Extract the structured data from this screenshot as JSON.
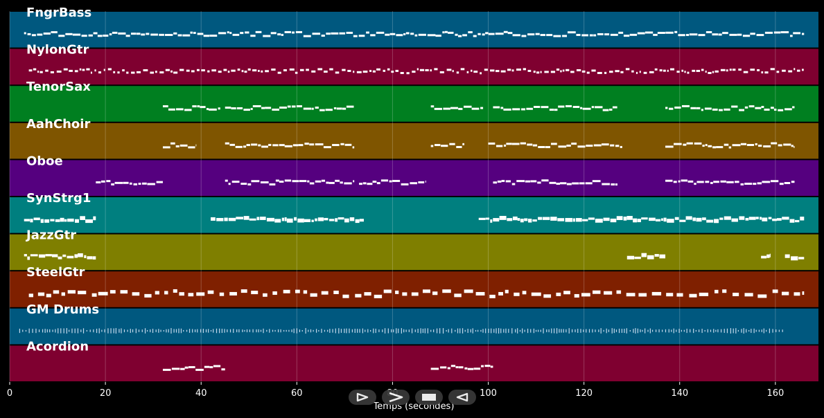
{
  "chart_data": {
    "type": "piano-roll",
    "xlabel": "Temps (secondes)",
    "xlim": [
      0,
      169
    ],
    "xticks": [
      0,
      20,
      40,
      60,
      80,
      100,
      120,
      140,
      160
    ],
    "grid": true,
    "tracks": [
      {
        "name": "FngrBass",
        "color": "#00587f",
        "style": "line",
        "segments": [
          [
            3,
            166
          ]
        ]
      },
      {
        "name": "NylonGtr",
        "color": "#7f0030",
        "style": "dense",
        "segments": [
          [
            4,
            166
          ]
        ]
      },
      {
        "name": "TenorSax",
        "color": "#007f20",
        "style": "line",
        "segments": [
          [
            32,
            44
          ],
          [
            45,
            72
          ],
          [
            88,
            99
          ],
          [
            101,
            127
          ],
          [
            137,
            164
          ]
        ]
      },
      {
        "name": "AahChoir",
        "color": "#7f5500",
        "style": "line",
        "segments": [
          [
            32,
            39
          ],
          [
            45,
            72
          ],
          [
            88,
            95
          ],
          [
            100,
            128
          ],
          [
            137,
            164
          ]
        ]
      },
      {
        "name": "Oboe",
        "color": "#55007f",
        "style": "line",
        "segments": [
          [
            18,
            32
          ],
          [
            45,
            72
          ],
          [
            73,
            87
          ],
          [
            101,
            127
          ],
          [
            137,
            164
          ]
        ]
      },
      {
        "name": "SynStrg1",
        "color": "#007f7f",
        "style": "thick",
        "segments": [
          [
            3,
            18
          ],
          [
            42,
            74
          ],
          [
            98,
            166
          ]
        ]
      },
      {
        "name": "JazzGtr",
        "color": "#7f7f00",
        "style": "thick",
        "segments": [
          [
            3,
            18
          ],
          [
            129,
            137
          ],
          [
            157,
            159
          ],
          [
            162,
            166
          ]
        ]
      },
      {
        "name": "SteelGtr",
        "color": "#7f2000",
        "style": "blocks",
        "segments": [
          [
            4,
            166
          ]
        ]
      },
      {
        "name": "GM Drums",
        "color": "#00587f",
        "style": "ticks",
        "segments": [
          [
            2,
            162
          ]
        ]
      },
      {
        "name": "Acordion",
        "color": "#7f0030",
        "style": "line",
        "segments": [
          [
            32,
            45
          ],
          [
            88,
            101
          ]
        ]
      }
    ]
  },
  "playback_controls": [
    {
      "name": "play-button",
      "icon": "play-icon"
    },
    {
      "name": "fast-forward-button",
      "icon": "fast-forward-icon"
    },
    {
      "name": "stop-button",
      "icon": "stop-icon"
    },
    {
      "name": "rewind-button",
      "icon": "rewind-icon"
    }
  ]
}
